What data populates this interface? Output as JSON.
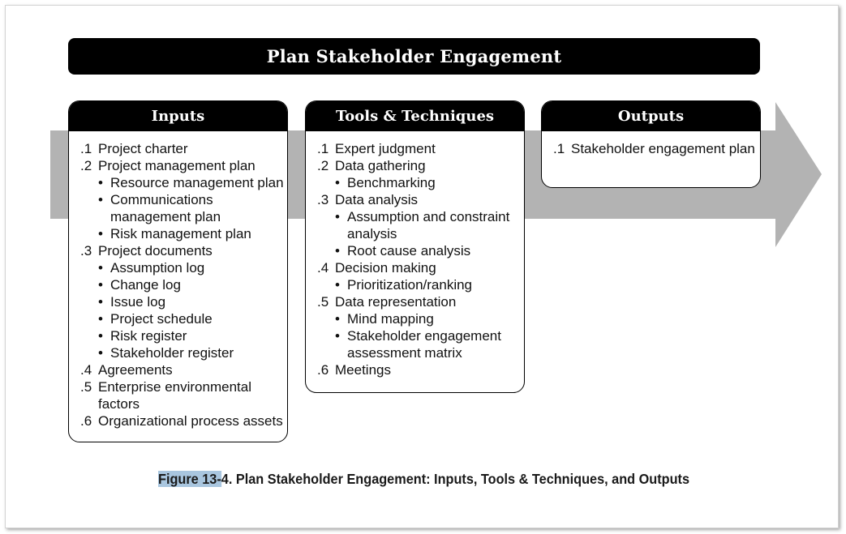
{
  "title": "Plan Stakeholder Engagement",
  "panels": {
    "inputs": {
      "header": "Inputs",
      "items": [
        {
          "num": ".1",
          "text": "Project charter",
          "subs": []
        },
        {
          "num": ".2",
          "text": "Project management plan",
          "subs": [
            "Resource management plan",
            "Communications management plan",
            "Risk management plan"
          ]
        },
        {
          "num": ".3",
          "text": "Project documents",
          "subs": [
            "Assumption log",
            "Change log",
            "Issue log",
            "Project schedule",
            "Risk register",
            "Stakeholder register"
          ]
        },
        {
          "num": ".4",
          "text": "Agreements",
          "subs": []
        },
        {
          "num": ".5",
          "text": "Enterprise environmental factors",
          "subs": []
        },
        {
          "num": ".6",
          "text": "Organizational process assets",
          "subs": []
        }
      ]
    },
    "tools": {
      "header": "Tools & Techniques",
      "items": [
        {
          "num": ".1",
          "text": "Expert judgment",
          "subs": []
        },
        {
          "num": ".2",
          "text": "Data gathering",
          "subs": [
            "Benchmarking"
          ]
        },
        {
          "num": ".3",
          "text": "Data analysis",
          "subs": [
            "Assumption and constraint analysis",
            "Root cause analysis"
          ]
        },
        {
          "num": ".4",
          "text": "Decision making",
          "subs": [
            "Prioritization/ranking"
          ]
        },
        {
          "num": ".5",
          "text": "Data representation",
          "subs": [
            "Mind mapping",
            "Stakeholder engagement assessment matrix"
          ]
        },
        {
          "num": ".6",
          "text": "Meetings",
          "subs": []
        }
      ]
    },
    "outputs": {
      "header": "Outputs",
      "items": [
        {
          "num": ".1",
          "text": "Stakeholder engagement plan",
          "subs": []
        }
      ]
    }
  },
  "bullet_char": "•",
  "caption": {
    "highlighted": "Figure 13-",
    "rest": "4. Plan Stakeholder Engagement: Inputs, Tools & Techniques, and Outputs"
  },
  "colors": {
    "arrow": "#b3b3b3",
    "header_bg": "#000000",
    "highlight": "#a9c6df"
  }
}
